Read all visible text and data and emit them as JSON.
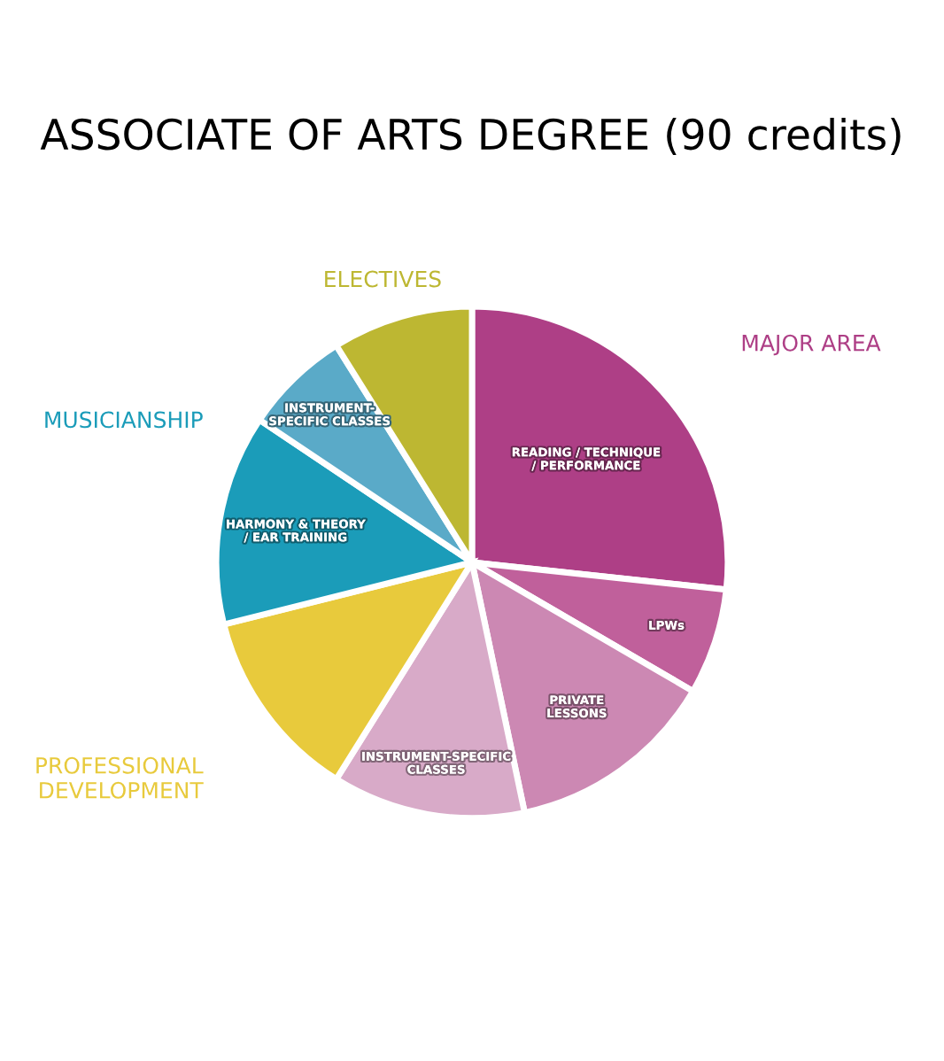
{
  "chart_data": {
    "type": "pie",
    "title": "ASSOCIATE OF ARTS DEGREE (90 credits)",
    "categories": [
      "READING / TECHNIQUE\n/ PERFORMANCE",
      "LPWs",
      "PRIVATE\nLESSONS",
      "INSTRUMENT-SPECIFIC\nCLASSES",
      null,
      "HARMONY & THEORY\n/ EAR TRAINING",
      "INSTRUMENT-\nSPECIFIC CLASSES",
      null
    ],
    "values": [
      26.7,
      6.7,
      13.3,
      12.2,
      12.2,
      13.3,
      6.7,
      8.9
    ],
    "colors": [
      "#ae3f86",
      "#c0609b",
      "#cc88b3",
      "#d8aac8",
      "#e8ca3c",
      "#1b9cb9",
      "#5aaac8",
      "#bdb732"
    ],
    "annotations": [
      "MAJOR AREA",
      "MUSICIANSHIP",
      "PROFESSIONAL\nDEVELOPMENT",
      "ELECTIVES"
    ],
    "legend": false
  }
}
